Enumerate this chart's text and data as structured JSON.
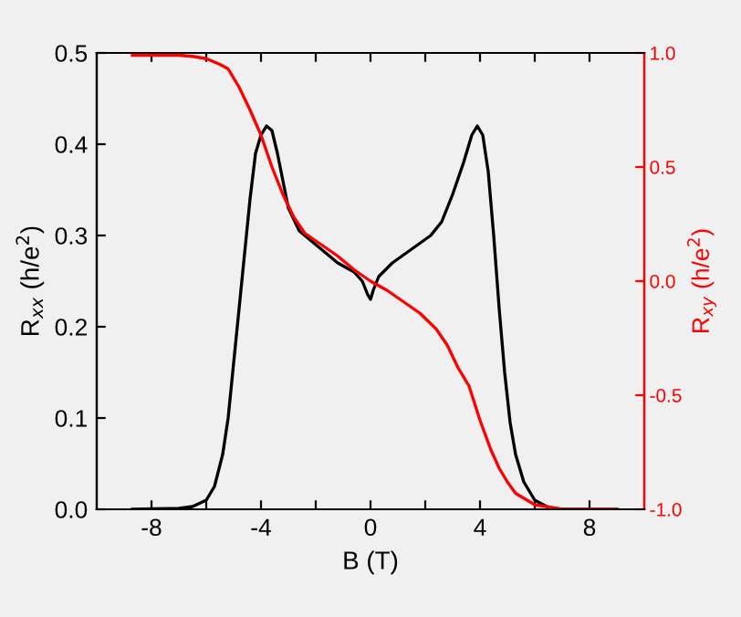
{
  "chart_data": {
    "type": "line",
    "xlabel": "B (T)",
    "ylabel": "R$_{xx}$ (h/e$^{2}$)",
    "y2label": "R$_{xy}$ (h/e$^{2}$)",
    "xlim": [
      -10,
      10
    ],
    "xticks": [
      -8,
      {
        "value": -6,
        "label": null
      },
      -4,
      {
        "value": -2,
        "label": null
      },
      0,
      {
        "value": 2,
        "label": null
      },
      4,
      {
        "value": 6,
        "label": null
      },
      8
    ],
    "ylim": [
      0,
      0.5
    ],
    "yticks": [
      {
        "value": 0,
        "label": "0.0"
      },
      0.1,
      0.2,
      0.3,
      0.4,
      0.5
    ],
    "y2lim": [
      -1,
      1
    ],
    "y2ticks": [
      {
        "value": -1,
        "label": "-1.0"
      },
      -0.5,
      {
        "value": 0,
        "label": "0.0"
      },
      0.5,
      {
        "value": 1,
        "label": "1.0"
      }
    ],
    "grid": false,
    "legend": false,
    "line_style": "solid",
    "marker": "none",
    "series": [
      {
        "color": "#000000",
        "x": [
          -8.7,
          -7,
          -6.5,
          -6,
          -5.7,
          -5.4,
          -5.2,
          -5.0,
          -4.8,
          -4.6,
          -4.4,
          -4.2,
          -4.0,
          -3.8,
          -3.6,
          -3.4,
          -3.2,
          -3.0,
          -2.6,
          -2.2,
          -1.8,
          -1.2,
          -0.6,
          -0.3,
          -0.1,
          0,
          0.1,
          0.3,
          0.8,
          1.5,
          2.2,
          2.6,
          3.0,
          3.4,
          3.7,
          3.9,
          4.1,
          4.3,
          4.5,
          4.7,
          4.9,
          5.1,
          5.3,
          5.6,
          6.0,
          6.5,
          7,
          9
        ],
        "values": [
          0,
          0.001,
          0.003,
          0.01,
          0.025,
          0.06,
          0.1,
          0.16,
          0.22,
          0.28,
          0.34,
          0.39,
          0.41,
          0.42,
          0.415,
          0.39,
          0.36,
          0.33,
          0.305,
          0.295,
          0.285,
          0.27,
          0.26,
          0.25,
          0.235,
          0.23,
          0.24,
          0.255,
          0.27,
          0.285,
          0.3,
          0.315,
          0.345,
          0.38,
          0.41,
          0.42,
          0.41,
          0.37,
          0.3,
          0.22,
          0.15,
          0.095,
          0.06,
          0.03,
          0.01,
          0.002,
          0,
          0
        ]
      },
      {
        "color": "#ff0000",
        "axis": "y2",
        "x": [
          -8.7,
          -7,
          -6.5,
          -6,
          -5.5,
          -5.2,
          -4.8,
          -4.4,
          -4.0,
          -3.6,
          -3.2,
          -2.8,
          -2.4,
          -1.8,
          -1.2,
          -0.6,
          0,
          0.6,
          1.2,
          1.8,
          2.4,
          2.8,
          3.2,
          3.6,
          4.0,
          4.4,
          4.7,
          5.0,
          5.3,
          6.0,
          7,
          9
        ],
        "values": [
          0.99,
          0.99,
          0.985,
          0.975,
          0.95,
          0.93,
          0.85,
          0.75,
          0.64,
          0.5,
          0.38,
          0.28,
          0.21,
          0.16,
          0.11,
          0.05,
          0.0,
          -0.04,
          -0.09,
          -0.14,
          -0.21,
          -0.28,
          -0.38,
          -0.46,
          -0.61,
          -0.74,
          -0.82,
          -0.88,
          -0.93,
          -0.98,
          -1.0,
          -1.0
        ]
      }
    ]
  }
}
